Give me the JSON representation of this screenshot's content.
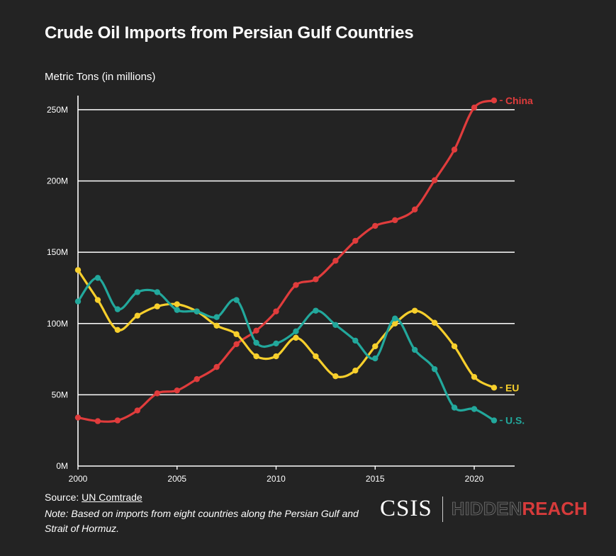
{
  "title": "Crude Oil Imports from Persian Gulf Countries",
  "ylabel": "Metric Tons (in millions)",
  "source_prefix": "Source: ",
  "source_link": "UN Comtrade",
  "note": "Note: Based on imports from eight countries along the Persian Gulf and Strait of Hormuz.",
  "logo": {
    "left": "CSIS",
    "hidden": "HIDDEN",
    "reach": "REACH"
  },
  "colors": {
    "china": "#e03c3c",
    "eu": "#f7cf2c",
    "us": "#22a89c",
    "background": "#232323",
    "grid": "#ffffff"
  },
  "chart_data": {
    "type": "line",
    "title": "Crude Oil Imports from Persian Gulf Countries",
    "ylabel": "Metric Tons (in millions)",
    "xlabel": "",
    "x": [
      2000,
      2001,
      2002,
      2003,
      2004,
      2005,
      2006,
      2007,
      2008,
      2009,
      2010,
      2011,
      2012,
      2013,
      2014,
      2015,
      2016,
      2017,
      2018,
      2019,
      2020,
      2021
    ],
    "xticks": [
      2000,
      2005,
      2010,
      2015,
      2020
    ],
    "yticks": [
      0,
      50,
      100,
      150,
      200,
      250
    ],
    "ytick_labels": [
      "0M",
      "50M",
      "100M",
      "150M",
      "200M",
      "250M"
    ],
    "ylim": [
      0,
      260
    ],
    "xlim": [
      2000,
      2022
    ],
    "grid": "horizontal",
    "legend": "inline labels at line ends",
    "series": [
      {
        "name": "China",
        "color": "#e03c3c",
        "values": [
          34,
          31.5,
          32,
          39,
          51,
          53,
          61,
          69.5,
          85.5,
          95,
          108.5,
          127,
          131,
          144,
          158,
          168.5,
          172.5,
          180,
          200.5,
          222,
          251.5,
          256.5
        ]
      },
      {
        "name": "EU",
        "color": "#f7cf2c",
        "values": [
          137.5,
          116.5,
          95.5,
          105.5,
          112,
          113.5,
          108.5,
          98.5,
          92.5,
          77,
          77,
          90,
          77,
          63,
          67,
          84,
          100,
          109,
          100.5,
          84,
          62.5,
          55
        ]
      },
      {
        "name": "U.S.",
        "color": "#22a89c",
        "values": [
          115.5,
          132,
          110,
          122,
          122,
          109.5,
          108.5,
          104.5,
          116.5,
          86.5,
          86,
          94.5,
          109,
          99,
          88,
          75.5,
          103.5,
          81.5,
          68,
          41,
          40,
          32
        ]
      }
    ]
  }
}
